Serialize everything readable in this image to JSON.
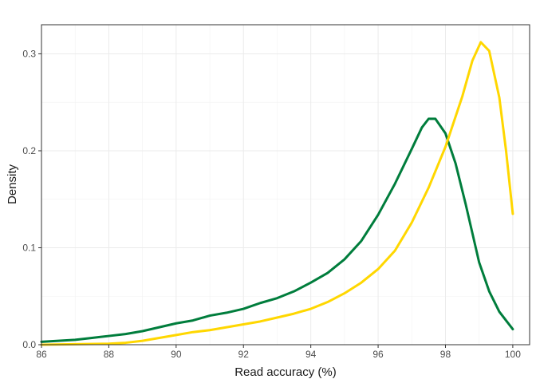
{
  "chart_data": {
    "type": "line",
    "title": "",
    "xlabel": "Read accuracy (%)",
    "ylabel": "Density",
    "xlim": [
      86,
      100.5
    ],
    "ylim": [
      0,
      0.33
    ],
    "x_ticks": [
      86,
      88,
      90,
      92,
      94,
      96,
      98,
      100
    ],
    "x_tick_labels": [
      "86",
      "88",
      "90",
      "92",
      "94",
      "96",
      "98",
      "100"
    ],
    "y_ticks": [
      0,
      0.1,
      0.2,
      0.3
    ],
    "y_tick_labels": [
      "0.0",
      "0.1",
      "0.2",
      "0.3"
    ],
    "grid": true,
    "legend": "none",
    "series": [
      {
        "color": "#007d3c",
        "points": [
          [
            86,
            0.003
          ],
          [
            86.5,
            0.004
          ],
          [
            87,
            0.005
          ],
          [
            87.5,
            0.007
          ],
          [
            88,
            0.009
          ],
          [
            88.5,
            0.011
          ],
          [
            89,
            0.014
          ],
          [
            89.5,
            0.018
          ],
          [
            90,
            0.022
          ],
          [
            90.5,
            0.025
          ],
          [
            91,
            0.03
          ],
          [
            91.5,
            0.033
          ],
          [
            92,
            0.037
          ],
          [
            92.5,
            0.043
          ],
          [
            93,
            0.048
          ],
          [
            93.5,
            0.055
          ],
          [
            94,
            0.064
          ],
          [
            94.5,
            0.074
          ],
          [
            95,
            0.088
          ],
          [
            95.5,
            0.107
          ],
          [
            96,
            0.134
          ],
          [
            96.5,
            0.166
          ],
          [
            97,
            0.202
          ],
          [
            97.3,
            0.224
          ],
          [
            97.5,
            0.233
          ],
          [
            97.7,
            0.233
          ],
          [
            98,
            0.218
          ],
          [
            98.3,
            0.187
          ],
          [
            98.6,
            0.145
          ],
          [
            99,
            0.085
          ],
          [
            99.3,
            0.055
          ],
          [
            99.6,
            0.034
          ],
          [
            100,
            0.016
          ]
        ]
      },
      {
        "color": "#ffd700",
        "points": [
          [
            86,
            0.0
          ],
          [
            87,
            0.0005
          ],
          [
            88,
            0.001
          ],
          [
            88.5,
            0.002
          ],
          [
            89,
            0.004
          ],
          [
            89.5,
            0.007
          ],
          [
            90,
            0.01
          ],
          [
            90.5,
            0.013
          ],
          [
            91,
            0.015
          ],
          [
            91.5,
            0.018
          ],
          [
            92,
            0.021
          ],
          [
            92.5,
            0.024
          ],
          [
            93,
            0.028
          ],
          [
            93.5,
            0.032
          ],
          [
            94,
            0.037
          ],
          [
            94.5,
            0.044
          ],
          [
            95,
            0.053
          ],
          [
            95.5,
            0.064
          ],
          [
            96,
            0.078
          ],
          [
            96.5,
            0.097
          ],
          [
            97,
            0.126
          ],
          [
            97.5,
            0.162
          ],
          [
            98,
            0.204
          ],
          [
            98.5,
            0.256
          ],
          [
            98.8,
            0.293
          ],
          [
            99.05,
            0.312
          ],
          [
            99.3,
            0.303
          ],
          [
            99.6,
            0.255
          ],
          [
            99.8,
            0.2
          ],
          [
            100,
            0.135
          ]
        ]
      }
    ]
  }
}
